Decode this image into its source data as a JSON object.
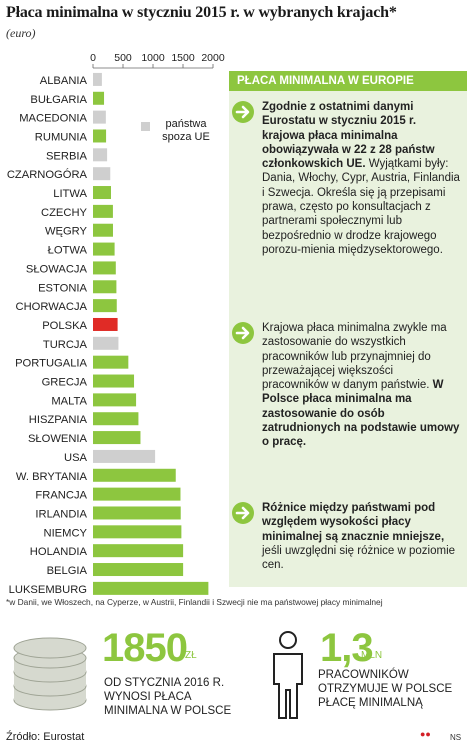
{
  "title": "Płaca minimalna w styczniu 2015 r. w wybranych krajach*",
  "subtitle": "(euro)",
  "colors": {
    "eu": "#8dc63f",
    "poland": "#e02b26",
    "non_eu": "#cfcfcf",
    "panel_bg": "#e9f2de"
  },
  "chart_data": {
    "type": "bar",
    "orientation": "horizontal",
    "xlim": [
      0,
      2000
    ],
    "ticks": [
      "0",
      "500",
      "1000",
      "1500",
      "2000"
    ],
    "categories": [
      "ALBANIA",
      "BUŁGARIA",
      "MACEDONIA",
      "RUMUNIA",
      "SERBIA",
      "CZARNOGÓRA",
      "LITWA",
      "CZECHY",
      "WĘGRY",
      "ŁOTWA",
      "SŁOWACJA",
      "ESTONIA",
      "CHORWACJA",
      "POLSKA",
      "TURCJA",
      "PORTUGALIA",
      "GRECJA",
      "MALTA",
      "HISZPANIA",
      "SŁOWENIA",
      "USA",
      "W. BRYTANIA",
      "FRANCJA",
      "IRLANDIA",
      "NIEMCY",
      "HOLANDIA",
      "BELGIA",
      "LUKSEMBURG"
    ],
    "values": [
      148,
      184,
      214,
      218,
      235,
      288,
      300,
      332,
      333,
      360,
      380,
      390,
      396,
      410,
      424,
      589,
      684,
      718,
      757,
      791,
      1035,
      1379,
      1458,
      1462,
      1473,
      1502,
      1502,
      1923
    ],
    "groups": [
      "non_eu",
      "eu",
      "non_eu",
      "eu",
      "non_eu",
      "non_eu",
      "eu",
      "eu",
      "eu",
      "eu",
      "eu",
      "eu",
      "eu",
      "highlight",
      "non_eu",
      "eu",
      "eu",
      "eu",
      "eu",
      "eu",
      "non_eu",
      "eu",
      "eu",
      "eu",
      "eu",
      "eu",
      "eu",
      "eu"
    ],
    "legend": {
      "label_line1": "państwa",
      "label_line2": "spoza UE"
    }
  },
  "panel": {
    "header": "PŁACA MINIMALNA W EUROPIE",
    "note1_bold": "Zgodnie z ostatnimi danymi Eurostatu w styczniu 2015 r. krajowa płaca minimalna obowiązywała w 22 z 28 państw członkowskich UE.",
    "note1_text": "Wyjątkami były: Dania, Włochy, Cypr, Austria, Finlandia i Szwecja. Określa się ją przepisami prawa, często po konsultacjach z partnerami społecznymi lub bezpośrednio w drodze krajowego porozu-mienia międzysektorowego.",
    "note2_text": "Krajowa płaca minimalna zwykle ma zastosowanie do wszystkich pracowników lub przynajmniej do przeważającej większości pracowników w danym państwie.",
    "note2_bold": "W Polsce płaca minimalna ma zastosowanie do osób zatrudnionych na podstawie umowy o pracę.",
    "note3_bold": "Różnice między państwami pod względem wysokości płacy minimalnej są znacznie mniejsze,",
    "note3_text": "jeśli uwzględni się różnice w poziomie cen."
  },
  "footnote": "*w Danii, we Włoszech, na Cyperze, w Austrii, Finlandii i Szwecji nie ma państwowej płacy minimalnej",
  "stat1": {
    "value": "1850",
    "unit": "ZŁ",
    "desc": "OD STYCZNIA 2016 R. WYNOSI PŁACA MINIMALNA W POLSCE"
  },
  "stat2": {
    "value": "1,3",
    "unit": "MLN",
    "desc": "PRACOWNIKÓW OTRZYMUJE W POLSCE PŁACĘ MINIMALNĄ"
  },
  "source": "Źródło: Eurostat",
  "credit": "NS"
}
